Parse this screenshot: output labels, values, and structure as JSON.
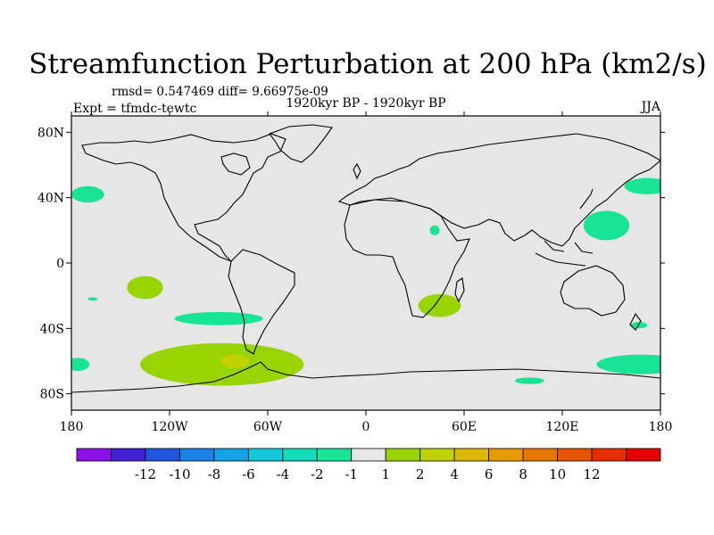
{
  "chart_data": {
    "type": "heatmap",
    "title": "Streamfunction Perturbation at 200 hPa (km2/s)",
    "stats_label": "rmsd= 0.547469 diff= 9.66975e-09",
    "expt_label": "Expt = tfmdc-tewtc",
    "period_label": "1920kyr BP - 1920kyr BP",
    "season_label": "JJA",
    "xlim": [
      -180,
      180
    ],
    "ylim": [
      -90,
      90
    ],
    "x_ticks": [
      {
        "value": -180,
        "label": "180"
      },
      {
        "value": -120,
        "label": "120W"
      },
      {
        "value": -60,
        "label": "60W"
      },
      {
        "value": 0,
        "label": "0"
      },
      {
        "value": 60,
        "label": "60E"
      },
      {
        "value": 120,
        "label": "120E"
      },
      {
        "value": 180,
        "label": "180"
      }
    ],
    "y_ticks": [
      {
        "value": 80,
        "label": "80N"
      },
      {
        "value": 40,
        "label": "40N"
      },
      {
        "value": 0,
        "label": "0"
      },
      {
        "value": -40,
        "label": "40S"
      },
      {
        "value": -80,
        "label": "80S"
      }
    ],
    "colorbar": {
      "colors": [
        "#8b10e8",
        "#4321d6",
        "#1e56e0",
        "#1a82e6",
        "#14a4e4",
        "#14c8de",
        "#10deb8",
        "#17e494",
        "#e6e6e6",
        "#98d500",
        "#c0d200",
        "#dcb800",
        "#e69c00",
        "#e67800",
        "#e65400",
        "#e62c00",
        "#e60000"
      ],
      "labels": [
        "-12",
        "-10",
        "-8",
        "-6",
        "-4",
        "-2",
        "-1",
        "1",
        "2",
        "4",
        "6",
        "8",
        "10",
        "12"
      ]
    },
    "regions": [
      {
        "level": "-1 to -2",
        "color": "#17e494",
        "lon": -170,
        "lat": 42,
        "rlon": 10,
        "rlat": 5
      },
      {
        "level": "-1 to -2",
        "color": "#17e494",
        "lon": 147,
        "lat": 23,
        "rlon": 14,
        "rlat": 9
      },
      {
        "level": "-1 to -2",
        "color": "#17e494",
        "lon": 172,
        "lat": 47,
        "rlon": 14,
        "rlat": 5
      },
      {
        "level": "-1 to -2",
        "color": "#17e494",
        "lon": -90,
        "lat": -34,
        "rlon": 27,
        "rlat": 4
      },
      {
        "level": "-1 to -2",
        "color": "#17e494",
        "lon": 168,
        "lat": -62,
        "rlon": 27,
        "rlat": 6
      },
      {
        "level": "-1 to -2",
        "color": "#17e494",
        "lon": -176,
        "lat": -62,
        "rlon": 7,
        "rlat": 4
      },
      {
        "level": "-1 to -2",
        "color": "#17e494",
        "lon": 100,
        "lat": -72,
        "rlon": 9,
        "rlat": 2
      },
      {
        "level": "-1 to -2",
        "color": "#17e494",
        "lon": 167,
        "lat": -38,
        "rlon": 5,
        "rlat": 2
      },
      {
        "level": "-1 to -2",
        "color": "#17e494",
        "lon": -167,
        "lat": -22,
        "rlon": 3,
        "rlat": 1
      },
      {
        "level": "-1 to -2",
        "color": "#17e494",
        "lon": 42,
        "lat": 20,
        "rlon": 3,
        "rlat": 3
      },
      {
        "level": "1 to 2",
        "color": "#98d500",
        "lon": -135,
        "lat": -15,
        "rlon": 11,
        "rlat": 7
      },
      {
        "level": "1 to 2",
        "color": "#98d500",
        "lon": 45,
        "lat": -26,
        "rlon": 13,
        "rlat": 7
      },
      {
        "level": "1 to 2",
        "color": "#98d500",
        "lon": -88,
        "lat": -62,
        "rlon": 50,
        "rlat": 13
      },
      {
        "level": "2 to 4",
        "color": "#c0d200",
        "lon": -80,
        "lat": -60,
        "rlon": 9,
        "rlat": 4
      }
    ]
  }
}
